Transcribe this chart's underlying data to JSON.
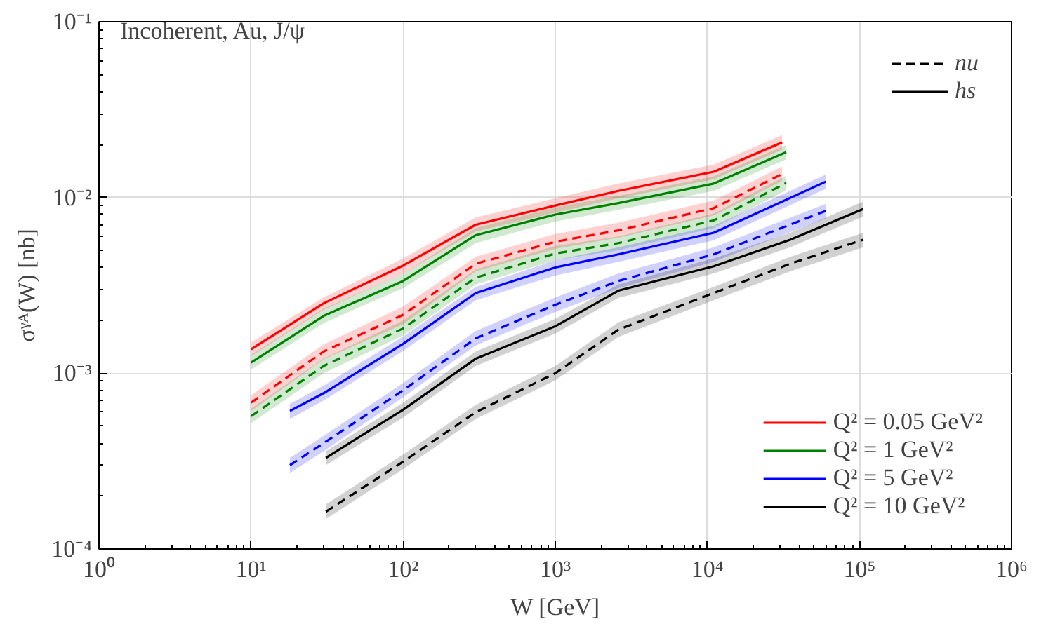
{
  "chart_data": {
    "type": "line",
    "xlabel": "W [GeV]",
    "ylabel": "σᵞᴬ(W) [nb]",
    "annotations": [
      "Incoherent, Au, J/ψ",
      "nu",
      "hs"
    ],
    "log": "xy",
    "grid": true,
    "legend": "bottom right",
    "xlim": [
      1,
      1000000
    ],
    "ylim": [
      0.0001,
      0.1
    ],
    "xticks": [
      {
        "value": 1,
        "label": "10⁰"
      },
      {
        "value": 10,
        "label": "10¹"
      },
      {
        "value": 100,
        "label": "10²"
      },
      {
        "value": 1000,
        "label": "10³"
      },
      {
        "value": 10000,
        "label": "10⁴"
      },
      {
        "value": 100000,
        "label": "10⁵"
      },
      {
        "value": 1000000,
        "label": "10⁶"
      }
    ],
    "yticks": [
      {
        "value": 0.0001,
        "label": "10⁻⁴"
      },
      {
        "value": 0.001,
        "label": "10⁻³"
      },
      {
        "value": 0.01,
        "label": "10⁻²"
      },
      {
        "value": 0.1,
        "label": "10⁻¹"
      }
    ],
    "series": [
      {
        "color": "#ff0000",
        "line_style": "dashed",
        "x": [
          10,
          30,
          100,
          300,
          1000,
          2600,
          11000,
          31000
        ],
        "values": [
          0.00068,
          0.00133,
          0.00215,
          0.0042,
          0.0056,
          0.0065,
          0.0087,
          0.0136
        ],
        "lower": [
          0.00061,
          0.0012,
          0.0019,
          0.0038,
          0.0051,
          0.0059,
          0.0079,
          0.0124
        ],
        "upper": [
          0.00075,
          0.00146,
          0.0024,
          0.0046,
          0.0062,
          0.0072,
          0.0096,
          0.015
        ]
      },
      {
        "name": "Q² = 0.05 GeV²",
        "color": "#ff0000",
        "line_style": "solid",
        "x": [
          10,
          30,
          100,
          300,
          1000,
          2600,
          11000,
          31000
        ],
        "values": [
          0.00137,
          0.0025,
          0.0041,
          0.007,
          0.009,
          0.0109,
          0.014,
          0.0206
        ],
        "lower": [
          0.00125,
          0.0023,
          0.0037,
          0.0064,
          0.0082,
          0.0099,
          0.0127,
          0.0187
        ],
        "upper": [
          0.0015,
          0.0027,
          0.0045,
          0.0077,
          0.0099,
          0.012,
          0.0154,
          0.0227
        ]
      },
      {
        "color": "#008000",
        "line_style": "dashed",
        "x": [
          10,
          30,
          100,
          300,
          1000,
          2600,
          11000,
          33000
        ],
        "values": [
          0.00057,
          0.0011,
          0.0018,
          0.0035,
          0.0048,
          0.0055,
          0.0074,
          0.0121
        ],
        "lower": [
          0.00052,
          0.001,
          0.00164,
          0.0032,
          0.0044,
          0.005,
          0.0067,
          0.011
        ],
        "upper": [
          0.00063,
          0.00121,
          0.002,
          0.0039,
          0.0053,
          0.006,
          0.0081,
          0.0133
        ]
      },
      {
        "name": "Q² = 1 GeV²",
        "color": "#008000",
        "line_style": "solid",
        "x": [
          10,
          30,
          100,
          300,
          1000,
          2600,
          11000,
          33000
        ],
        "values": [
          0.00115,
          0.00212,
          0.00335,
          0.0061,
          0.008,
          0.0093,
          0.012,
          0.0181
        ],
        "lower": [
          0.00105,
          0.00193,
          0.00305,
          0.0055,
          0.0073,
          0.0085,
          0.0109,
          0.0165
        ],
        "upper": [
          0.00127,
          0.00233,
          0.0037,
          0.0067,
          0.0088,
          0.0102,
          0.0132,
          0.0199
        ]
      },
      {
        "color": "#0000ff",
        "line_style": "dashed",
        "x": [
          18,
          30,
          100,
          300,
          1000,
          2600,
          11000,
          60000
        ],
        "values": [
          0.0003,
          0.0004,
          0.0008,
          0.00158,
          0.00245,
          0.00335,
          0.00475,
          0.0084
        ],
        "lower": [
          0.00027,
          0.00036,
          0.00073,
          0.00144,
          0.00223,
          0.00305,
          0.0043,
          0.0076
        ],
        "upper": [
          0.00033,
          0.00044,
          0.00088,
          0.00174,
          0.0027,
          0.0037,
          0.0052,
          0.0092
        ]
      },
      {
        "name": "Q² = 5 GeV²",
        "color": "#0000ff",
        "line_style": "solid",
        "x": [
          18,
          30,
          100,
          300,
          1000,
          2600,
          11000,
          60000
        ],
        "values": [
          0.00061,
          0.00077,
          0.00147,
          0.00286,
          0.004,
          0.00475,
          0.0063,
          0.0123
        ],
        "lower": [
          0.00055,
          0.0007,
          0.00134,
          0.0026,
          0.0036,
          0.0043,
          0.0057,
          0.0112
        ],
        "upper": [
          0.00067,
          0.00085,
          0.00162,
          0.0031,
          0.0044,
          0.0052,
          0.0069,
          0.0135
        ]
      },
      {
        "color": "#000000",
        "line_style": "dashed",
        "x": [
          31,
          100,
          300,
          1000,
          2600,
          11000,
          35000,
          106000
        ],
        "values": [
          0.000163,
          0.000314,
          0.0006,
          0.001,
          0.00177,
          0.00286,
          0.0042,
          0.00575
        ],
        "lower": [
          0.000148,
          0.000285,
          0.00055,
          0.00091,
          0.00161,
          0.0026,
          0.0038,
          0.0052
        ],
        "upper": [
          0.000179,
          0.000345,
          0.00066,
          0.0011,
          0.00195,
          0.0031,
          0.0046,
          0.0063
        ]
      },
      {
        "name": "Q² = 10 GeV²",
        "color": "#000000",
        "line_style": "solid",
        "x": [
          31,
          100,
          300,
          1000,
          2600,
          11000,
          35000,
          106000
        ],
        "values": [
          0.00033,
          0.00062,
          0.00121,
          0.00185,
          0.00295,
          0.00406,
          0.00575,
          0.0086
        ],
        "lower": [
          0.0003,
          0.00056,
          0.0011,
          0.00168,
          0.00268,
          0.0037,
          0.0052,
          0.0078
        ],
        "upper": [
          0.00036,
          0.00068,
          0.00133,
          0.00204,
          0.0032,
          0.0045,
          0.0063,
          0.0095
        ]
      }
    ]
  }
}
